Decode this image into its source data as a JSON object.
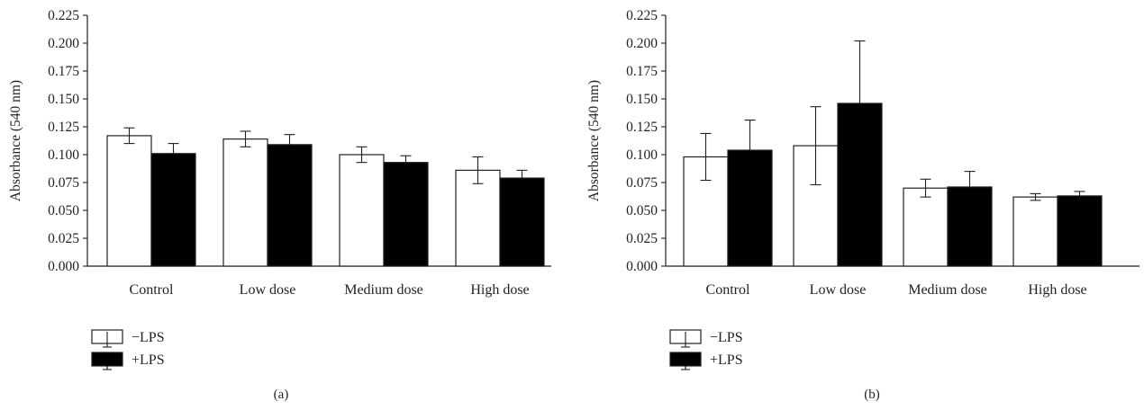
{
  "chart_data": [
    {
      "type": "bar",
      "panel_label": "(a)",
      "ylabel": "Absorbance (540 nm)",
      "xlabel": "",
      "ylim": [
        0,
        0.225
      ],
      "yticks": [
        "0.000",
        "0.025",
        "0.050",
        "0.075",
        "0.100",
        "0.125",
        "0.150",
        "0.175",
        "0.200",
        "0.225"
      ],
      "categories": [
        "Control",
        "Low dose",
        "Medium dose",
        "High dose"
      ],
      "grid": false,
      "legend_position": "bottom-left",
      "series": [
        {
          "name": "−LPS",
          "color": "#ffffff",
          "values": [
            0.117,
            0.114,
            0.1,
            0.086
          ],
          "errors": [
            0.007,
            0.007,
            0.007,
            0.012
          ]
        },
        {
          "name": "+LPS",
          "color": "#000000",
          "values": [
            0.101,
            0.109,
            0.093,
            0.079
          ],
          "errors": [
            0.009,
            0.009,
            0.006,
            0.007
          ]
        }
      ]
    },
    {
      "type": "bar",
      "panel_label": "(b)",
      "ylabel": "Absorbance (540 nm)",
      "xlabel": "",
      "ylim": [
        0,
        0.225
      ],
      "yticks": [
        "0.000",
        "0.025",
        "0.050",
        "0.075",
        "0.100",
        "0.125",
        "0.150",
        "0.175",
        "0.200",
        "0.225"
      ],
      "categories": [
        "Control",
        "Low dose",
        "Medium dose",
        "High dose"
      ],
      "grid": false,
      "legend_position": "bottom-left",
      "series": [
        {
          "name": "−LPS",
          "color": "#ffffff",
          "values": [
            0.098,
            0.108,
            0.07,
            0.062
          ],
          "errors": [
            0.021,
            0.035,
            0.008,
            0.003
          ]
        },
        {
          "name": "+LPS",
          "color": "#000000",
          "values": [
            0.104,
            0.146,
            0.071,
            0.063
          ],
          "errors": [
            0.027,
            0.056,
            0.014,
            0.004
          ]
        }
      ]
    }
  ]
}
